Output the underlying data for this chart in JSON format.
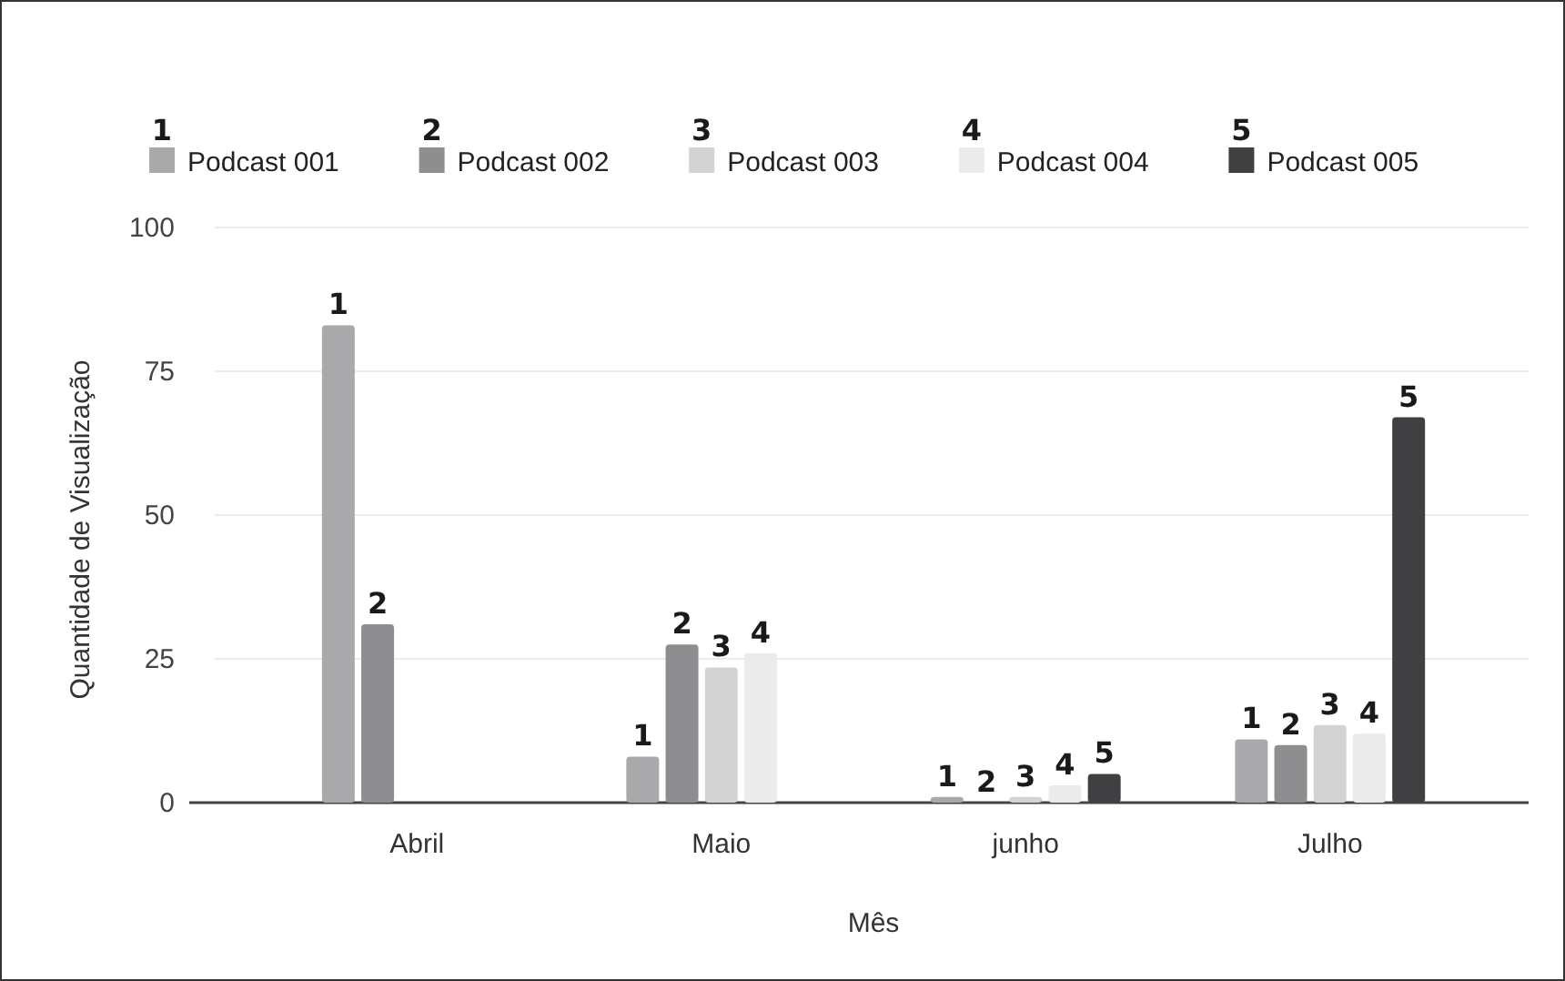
{
  "chart_data": {
    "type": "bar",
    "xlabel": "Mês",
    "ylabel": "Quantidade de Visualização",
    "categories": [
      "Abril",
      "Maio",
      "junho",
      "Julho"
    ],
    "series": [
      {
        "name": "Podcast 001",
        "color": "#a9a9ab",
        "values": [
          83,
          8,
          1,
          11
        ]
      },
      {
        "name": "Podcast 002",
        "color": "#8e8e90",
        "values": [
          31,
          27.5,
          0,
          10
        ]
      },
      {
        "name": "Podcast 003",
        "color": "#d3d3d4",
        "values": [
          null,
          23.5,
          1,
          13.5
        ]
      },
      {
        "name": "Podcast 004",
        "color": "#ebebeb",
        "values": [
          null,
          26,
          3,
          12
        ]
      },
      {
        "name": "Podcast 005",
        "color": "#404042",
        "values": [
          null,
          null,
          5,
          67
        ]
      }
    ],
    "ylim": [
      0,
      100
    ],
    "yticks": [
      0,
      25,
      50,
      75,
      100
    ],
    "grid": "y",
    "legend": "top",
    "annotations": [
      "1",
      "2",
      "3",
      "4",
      "5",
      "1",
      "2",
      "1",
      "2",
      "3",
      "4",
      "1",
      "2",
      "3",
      "4",
      "5",
      "1",
      "2",
      "3",
      "4",
      "5"
    ]
  }
}
